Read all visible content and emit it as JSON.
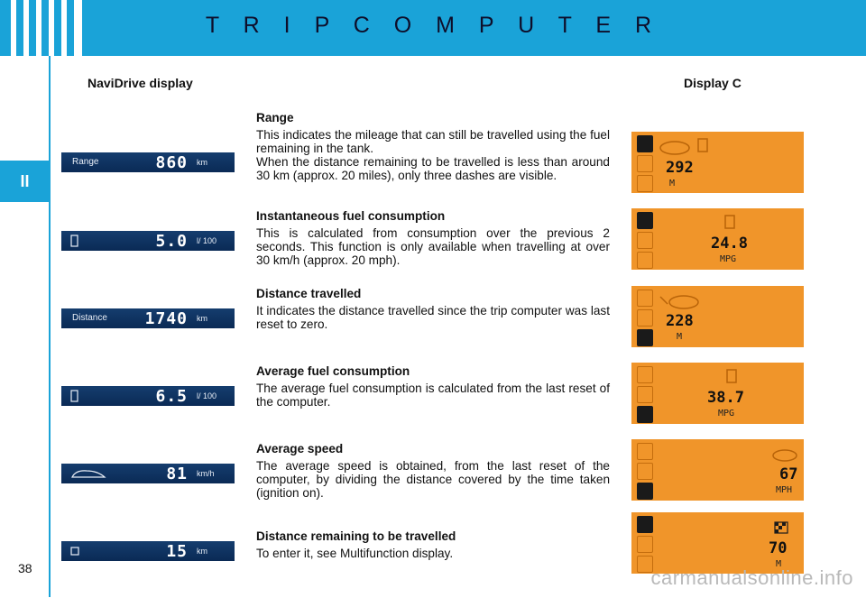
{
  "header": {
    "title": "T R I P   C O M P U T E R"
  },
  "side_tab": "II",
  "columns": {
    "left": "NaviDrive display",
    "right": "Display C"
  },
  "sections": [
    {
      "title": "Range",
      "body": "This indicates the mileage that can still be travelled using the fuel remaining in the tank.\nWhen the distance remaining to be travelled is less than around 30 km (approx. 20 miles), only three dashes are visible.",
      "navi": {
        "label": "Range",
        "value": "860",
        "unit": "km"
      },
      "display": {
        "value": "292",
        "unit": "M"
      }
    },
    {
      "title": "Instantaneous fuel consumption",
      "body": "This is calculated from consumption over the previous 2 seconds. This function is only available when travelling at over 30 km/h (approx. 20 mph).",
      "navi": {
        "label": "",
        "value": "5.0",
        "unit": "l/ 100"
      },
      "display": {
        "value": "24.8",
        "unit": "MPG"
      }
    },
    {
      "title": "Distance travelled",
      "body": "It indicates the distance travelled since the trip computer was last reset to zero.",
      "navi": {
        "label": "Distance",
        "value": "1740",
        "unit": "km"
      },
      "display": {
        "value": "228",
        "unit": "M"
      }
    },
    {
      "title": "Average fuel consumption",
      "body": "The average fuel consumption is calculated from the last reset of the computer.",
      "navi": {
        "label": "",
        "value": "6.5",
        "unit": "l/ 100"
      },
      "display": {
        "value": "38.7",
        "unit": "MPG"
      }
    },
    {
      "title": "Average speed",
      "body": "The average speed is obtained, from the last reset of the computer, by dividing the distance covered by the time taken (ignition on).",
      "navi": {
        "label": "",
        "value": "81",
        "unit": "km/h"
      },
      "display": {
        "value": "67",
        "unit": "MPH"
      }
    },
    {
      "title": "Distance remaining to be travelled",
      "body": "To enter it, see Multifunction display.",
      "navi": {
        "label": "",
        "value": "15",
        "unit": "km"
      },
      "display": {
        "value": "70",
        "unit": "M"
      }
    }
  ],
  "page_number": "38",
  "watermark": "carmanualsonline.info",
  "colors": {
    "header": "#1aa3d8",
    "navi_bg": "#0a2a55",
    "display_bg": "#f0952a"
  }
}
